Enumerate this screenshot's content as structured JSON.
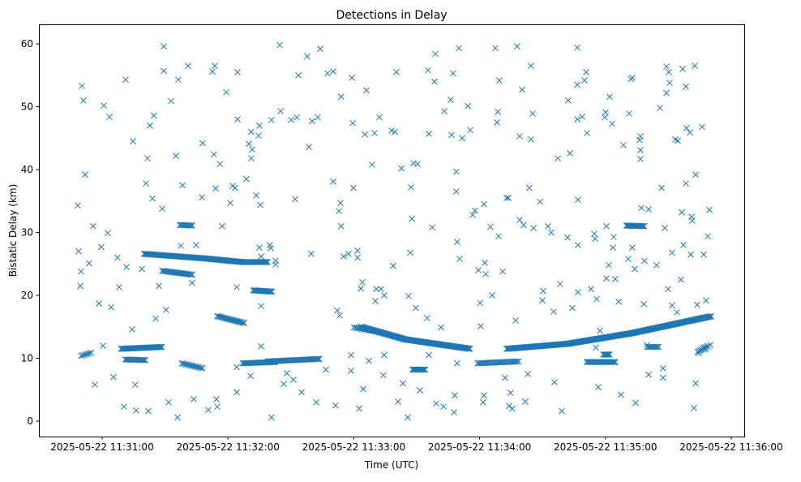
{
  "chart_data": {
    "type": "scatter",
    "title": "Detections in Delay",
    "xlabel": "Time (UTC)",
    "ylabel": "Bistatic Delay (km)",
    "x_unit": "seconds after 2025-05-22 11:30:00",
    "xlim": [
      29.85,
      366.2
    ],
    "ylim": [
      -2.45,
      63.1
    ],
    "grid": false,
    "marker": "x",
    "color": "#1f77b4",
    "yticks": [
      0,
      10,
      20,
      30,
      40,
      50,
      60
    ],
    "xticks": [
      {
        "value": 60,
        "label": "2025-05-22 11:31:00"
      },
      {
        "value": 120,
        "label": "2025-05-22 11:32:00"
      },
      {
        "value": 180,
        "label": "2025-05-22 11:33:00"
      },
      {
        "value": 240,
        "label": "2025-05-22 11:34:00"
      },
      {
        "value": 300,
        "label": "2025-05-22 11:35:00"
      },
      {
        "value": 360,
        "label": "2025-05-22 11:36:00"
      }
    ],
    "tracks": [
      {
        "points": [
          [
            183.3,
            15.0
          ],
          [
            204.6,
            13.0
          ],
          [
            235.5,
            11.5
          ]
        ],
        "step": 0.4
      },
      {
        "points": [
          [
            252.9,
            11.5
          ],
          [
            281.9,
            12.3
          ],
          [
            312.8,
            14.0
          ],
          [
            350.7,
            16.7
          ]
        ],
        "step": 0.4
      },
      {
        "points": [
          [
            80,
            26.6
          ],
          [
            108,
            25.9
          ],
          [
            127,
            25.3
          ],
          [
            139,
            25.3
          ]
        ],
        "step": 0.5
      },
      {
        "points": [
          [
            88.6,
            23.9
          ],
          [
            103,
            23.3
          ]
        ],
        "step": 0.6
      },
      {
        "points": [
          [
            97,
            31.2
          ],
          [
            103,
            31.1
          ]
        ],
        "step": 0.6
      },
      {
        "points": [
          [
            310,
            31.1
          ],
          [
            318.6,
            31.0
          ]
        ],
        "step": 0.5
      },
      {
        "points": [
          [
            132,
            20.8
          ],
          [
            141,
            20.6
          ]
        ],
        "step": 0.5
      },
      {
        "points": [
          [
            114.9,
            16.7
          ],
          [
            127.7,
            15.6
          ]
        ],
        "step": 0.6
      },
      {
        "points": [
          [
            69,
            11.5
          ],
          [
            88.6,
            11.8
          ]
        ],
        "step": 0.5
      },
      {
        "points": [
          [
            71,
            9.8
          ],
          [
            81,
            9.7
          ]
        ],
        "step": 0.6
      },
      {
        "points": [
          [
            50,
            10.4
          ],
          [
            55,
            10.9
          ]
        ],
        "step": 0.8
      },
      {
        "points": [
          [
            139,
            9.5
          ],
          [
            164,
            9.9
          ]
        ],
        "step": 0.6
      },
      {
        "points": [
          [
            98,
            9.2
          ],
          [
            108,
            8.4
          ]
        ],
        "step": 0.7
      },
      {
        "points": [
          [
            127,
            9.2
          ],
          [
            143,
            9.4
          ]
        ],
        "step": 0.6
      },
      {
        "points": [
          [
            208,
            8.2
          ],
          [
            214,
            8.2
          ]
        ],
        "step": 0.5
      },
      {
        "points": [
          [
            239,
            9.2
          ],
          [
            259,
            9.5
          ]
        ],
        "step": 0.7
      },
      {
        "points": [
          [
            291,
            9.4
          ],
          [
            305,
            9.4
          ]
        ],
        "step": 0.6
      },
      {
        "points": [
          [
            299,
            10.6
          ],
          [
            302,
            10.6
          ]
        ],
        "step": 0.5
      },
      {
        "points": [
          [
            320,
            11.8
          ],
          [
            326,
            11.8
          ]
        ],
        "step": 0.6
      },
      {
        "points": [
          [
            344,
            11.0
          ],
          [
            349,
            12.0
          ]
        ],
        "step": 0.6
      },
      {
        "points": [
          [
            180,
            14.9
          ],
          [
            190,
            14.3
          ]
        ],
        "step": 0.8
      }
    ],
    "points": [
      [
        48.4,
        34.3
      ],
      [
        48.8,
        27
      ],
      [
        49.6,
        21.5
      ],
      [
        50.3,
        53.3
      ],
      [
        51.1,
        51
      ],
      [
        51.9,
        39.2
      ],
      [
        49.9,
        23.8
      ],
      [
        53.8,
        25.1
      ],
      [
        55.7,
        31
      ],
      [
        56.5,
        5.8
      ],
      [
        58.5,
        18.7
      ],
      [
        59.6,
        27.7
      ],
      [
        60.4,
        12
      ],
      [
        60.8,
        50.2
      ],
      [
        62.7,
        29.9
      ],
      [
        63.5,
        48.4
      ],
      [
        64.3,
        18.1
      ],
      [
        65.4,
        7
      ],
      [
        67.3,
        26
      ],
      [
        68.1,
        21.3
      ],
      [
        70.4,
        2.3
      ],
      [
        71.2,
        54.3
      ],
      [
        71.6,
        24.5
      ],
      [
        74.3,
        14.6
      ],
      [
        74.7,
        44.5
      ],
      [
        75.8,
        5.8
      ],
      [
        76.2,
        1.7
      ],
      [
        78.9,
        24.2
      ],
      [
        80.9,
        37.8
      ],
      [
        81.6,
        41.8
      ],
      [
        82.0,
        1.6
      ],
      [
        82.8,
        47
      ],
      [
        84.0,
        35.4
      ],
      [
        84.7,
        48.6
      ],
      [
        85.5,
        16.3
      ],
      [
        87.1,
        21.5
      ],
      [
        88.6,
        33.8
      ],
      [
        89.4,
        59.6
      ],
      [
        89.4,
        55.7
      ],
      [
        90.5,
        17.7
      ],
      [
        91.7,
        3
      ],
      [
        92.9,
        50.9
      ],
      [
        95.2,
        42.2
      ],
      [
        96.0,
        0.6
      ],
      [
        96.3,
        54.3
      ],
      [
        97.5,
        27.9
      ],
      [
        98.3,
        37.5
      ],
      [
        101.0,
        56.5
      ],
      [
        102.9,
        22
      ],
      [
        103.7,
        3.5
      ],
      [
        104.8,
        28
      ],
      [
        107.9,
        44.2
      ],
      [
        107.6,
        35.6
      ],
      [
        110.6,
        1.8
      ],
      [
        112.6,
        55.6
      ],
      [
        113.3,
        42.4
      ],
      [
        113.7,
        56.5
      ],
      [
        114.1,
        37
      ],
      [
        114.5,
        3.5
      ],
      [
        114.9,
        2.3
      ],
      [
        116.1,
        40.9
      ],
      [
        117.2,
        31
      ],
      [
        119.2,
        52.3
      ],
      [
        121.1,
        34.7
      ],
      [
        122.2,
        37.4
      ],
      [
        123.4,
        37.1
      ],
      [
        124.2,
        8.6
      ],
      [
        124.2,
        4.6
      ],
      [
        124.6,
        55.5
      ],
      [
        124.2,
        21.3
      ],
      [
        124.6,
        48
      ],
      [
        127.7,
        15.6
      ],
      [
        128.8,
        38.5
      ],
      [
        130.0,
        44.1
      ],
      [
        130.8,
        7.2
      ],
      [
        131.1,
        46
      ],
      [
        131.1,
        41.8
      ],
      [
        131.5,
        43.2
      ],
      [
        133.5,
        35.9
      ],
      [
        134.6,
        45.4
      ],
      [
        135.0,
        27.6
      ],
      [
        135.4,
        34.4
      ],
      [
        135.0,
        47
      ],
      [
        135.8,
        11.9
      ],
      [
        135.8,
        18.3
      ],
      [
        135.8,
        26.2
      ],
      [
        140.0,
        28
      ],
      [
        140.8,
        0.6
      ],
      [
        140.8,
        47.9
      ],
      [
        140.4,
        27.5
      ],
      [
        142.7,
        25.5
      ],
      [
        142.7,
        24.9
      ],
      [
        144.7,
        59.8
      ],
      [
        145.1,
        49.3
      ],
      [
        146.6,
        5.9
      ],
      [
        148.1,
        7.6
      ],
      [
        150.1,
        47.9
      ],
      [
        151.2,
        6.6
      ],
      [
        152.0,
        35.3
      ],
      [
        152.8,
        48.3
      ],
      [
        153.6,
        55
      ],
      [
        155.1,
        4.6
      ],
      [
        157.8,
        58
      ],
      [
        158.6,
        43.6
      ],
      [
        159.7,
        26.6
      ],
      [
        160.1,
        47.7
      ],
      [
        162.1,
        3
      ],
      [
        162.8,
        48.3
      ],
      [
        164.0,
        59.2
      ],
      [
        166.7,
        8.2
      ],
      [
        167.5,
        55.3
      ],
      [
        170.2,
        55.6
      ],
      [
        170.2,
        38.1
      ],
      [
        171.3,
        2.5
      ],
      [
        172.1,
        17.6
      ],
      [
        173.3,
        16.8
      ],
      [
        172.9,
        33.4
      ],
      [
        173.7,
        34.7
      ],
      [
        174.0,
        31
      ],
      [
        174.0,
        51.6
      ],
      [
        175.2,
        26.2
      ],
      [
        177.5,
        26.6
      ],
      [
        178.7,
        8
      ],
      [
        178.7,
        10.5
      ],
      [
        179.1,
        54.6
      ],
      [
        179.5,
        47.4
      ],
      [
        179.8,
        37.1
      ],
      [
        181.8,
        27.1
      ],
      [
        181.8,
        26
      ],
      [
        182.6,
        2
      ],
      [
        183.3,
        21.1
      ],
      [
        184.1,
        22.1
      ],
      [
        184.5,
        5.1
      ],
      [
        185.3,
        45.6
      ],
      [
        186.0,
        52.6
      ],
      [
        187.2,
        9.6
      ],
      [
        188.7,
        40.8
      ],
      [
        189.9,
        45.8
      ],
      [
        190.3,
        19.1
      ],
      [
        190.7,
        21
      ],
      [
        192.2,
        48.3
      ],
      [
        193.0,
        21
      ],
      [
        194.1,
        7.3
      ],
      [
        194.5,
        10.5
      ],
      [
        194.5,
        20
      ],
      [
        198.0,
        46.2
      ],
      [
        198.8,
        24.7
      ],
      [
        199.6,
        46
      ],
      [
        200.3,
        55.5
      ],
      [
        201.1,
        3.1
      ],
      [
        202.7,
        40.2
      ],
      [
        203.4,
        6
      ],
      [
        205.7,
        0.6
      ],
      [
        206.1,
        19.9
      ],
      [
        206.9,
        26.8
      ],
      [
        207.3,
        37.2
      ],
      [
        208.5,
        41
      ],
      [
        207.7,
        32.2
      ],
      [
        209.6,
        18
      ],
      [
        210.4,
        40.9
      ],
      [
        211.5,
        4.9
      ],
      [
        211.9,
        12.6
      ],
      [
        215.0,
        16.4
      ],
      [
        215.4,
        55.8
      ],
      [
        215.8,
        10.5
      ],
      [
        215.8,
        45.7
      ],
      [
        217.4,
        30.8
      ],
      [
        218.5,
        54
      ],
      [
        218.9,
        58.4
      ],
      [
        219.3,
        2.8
      ],
      [
        221.6,
        14.9
      ],
      [
        222.8,
        2.3
      ],
      [
        223.2,
        49.3
      ],
      [
        226.2,
        51.1
      ],
      [
        226.6,
        45.5
      ],
      [
        227.4,
        55.3
      ],
      [
        227.8,
        1.4
      ],
      [
        228.2,
        4.1
      ],
      [
        228.9,
        36.5
      ],
      [
        228.9,
        39.7
      ],
      [
        229.3,
        28.5
      ],
      [
        229.3,
        9.2
      ],
      [
        230.1,
        59.3
      ],
      [
        230.5,
        25.8
      ],
      [
        231.7,
        45
      ],
      [
        234.4,
        50.1
      ],
      [
        235.5,
        46.3
      ],
      [
        236.7,
        32.8
      ],
      [
        237.8,
        33.5
      ],
      [
        239.4,
        24
      ],
      [
        240.2,
        18.8
      ],
      [
        240.5,
        15.1
      ],
      [
        241.7,
        3
      ],
      [
        242.1,
        34.5
      ],
      [
        242.5,
        25.2
      ],
      [
        242.9,
        23.4
      ],
      [
        242.1,
        4.1
      ],
      [
        245.2,
        30.9
      ],
      [
        246.0,
        20
      ],
      [
        247.5,
        59.3
      ],
      [
        248.3,
        47.5
      ],
      [
        248.7,
        49.2
      ],
      [
        249.1,
        29.4
      ],
      [
        249.4,
        54.2
      ],
      [
        251.0,
        23.8
      ],
      [
        252.1,
        6.9
      ],
      [
        252.9,
        35.5
      ],
      [
        253.7,
        35.5
      ],
      [
        254.1,
        2.4
      ],
      [
        254.8,
        4.5
      ],
      [
        255.6,
        2
      ],
      [
        257.2,
        16
      ],
      [
        257.9,
        59.6
      ],
      [
        259.1,
        45.3
      ],
      [
        259.1,
        32
      ],
      [
        260.3,
        52.7
      ],
      [
        261.0,
        31.2
      ],
      [
        261.8,
        3.1
      ],
      [
        263.0,
        7.5
      ],
      [
        263.7,
        37.1
      ],
      [
        264.5,
        56.5
      ],
      [
        264.5,
        44.8
      ],
      [
        265.3,
        48.9
      ],
      [
        265.7,
        30.7
      ],
      [
        268.8,
        34.9
      ],
      [
        269.9,
        19.2
      ],
      [
        270.3,
        20.7
      ],
      [
        272.6,
        31
      ],
      [
        274.2,
        30
      ],
      [
        275.3,
        17.4
      ],
      [
        275.7,
        6.2
      ],
      [
        277.3,
        41.8
      ],
      [
        278.4,
        21.8
      ],
      [
        279.2,
        1.6
      ],
      [
        281.9,
        29.2
      ],
      [
        282.3,
        51
      ],
      [
        283.1,
        42.6
      ],
      [
        284.2,
        18
      ],
      [
        286.6,
        59.4
      ],
      [
        286.6,
        48
      ],
      [
        286.6,
        53.5
      ],
      [
        286.9,
        35.2
      ],
      [
        286.9,
        28
      ],
      [
        286.9,
        20.5
      ],
      [
        288.9,
        48.4
      ],
      [
        290.0,
        54.2
      ],
      [
        290.8,
        55.5
      ],
      [
        291.2,
        45.8
      ],
      [
        293.1,
        21
      ],
      [
        294.7,
        29.8
      ],
      [
        295.1,
        29
      ],
      [
        295.4,
        11.7
      ],
      [
        295.8,
        19.4
      ],
      [
        296.6,
        5.4
      ],
      [
        297.4,
        14.4
      ],
      [
        299.7,
        48.3
      ],
      [
        300.1,
        49.1
      ],
      [
        300.5,
        22.7
      ],
      [
        300.5,
        31
      ],
      [
        301.6,
        24.8
      ],
      [
        302.0,
        51.6
      ],
      [
        303.2,
        47.3
      ],
      [
        303.6,
        27.6
      ],
      [
        303.9,
        29.3
      ],
      [
        304.7,
        22.6
      ],
      [
        306.3,
        19
      ],
      [
        307.4,
        4.2
      ],
      [
        308.6,
        43.9
      ],
      [
        310.9,
        25.8
      ],
      [
        311.3,
        48.9
      ],
      [
        312.1,
        54.4
      ],
      [
        312.8,
        27.6
      ],
      [
        312.8,
        54.6
      ],
      [
        314.0,
        24.2
      ],
      [
        314.4,
        2.9
      ],
      [
        316.3,
        44.7
      ],
      [
        316.7,
        43.1
      ],
      [
        316.7,
        41.7
      ],
      [
        316.7,
        45.3
      ],
      [
        317.1,
        33.9
      ],
      [
        318.3,
        18.6
      ],
      [
        318.6,
        25.5
      ],
      [
        319.8,
        12.1
      ],
      [
        320.6,
        7.4
      ],
      [
        320.6,
        33.7
      ],
      [
        324.4,
        24.8
      ],
      [
        326.0,
        49.8
      ],
      [
        326.8,
        37.1
      ],
      [
        327.5,
        8.4
      ],
      [
        327.5,
        6.9
      ],
      [
        328.3,
        30.7
      ],
      [
        329.1,
        52.2
      ],
      [
        329.1,
        56.4
      ],
      [
        329.9,
        21
      ],
      [
        330.2,
        55.5
      ],
      [
        330.6,
        53.8
      ],
      [
        331.8,
        18.4
      ],
      [
        331.8,
        26.8
      ],
      [
        333.3,
        44.8
      ],
      [
        334.1,
        17.3
      ],
      [
        334.5,
        44.6
      ],
      [
        336.0,
        22.5
      ],
      [
        336.4,
        33.2
      ],
      [
        336.8,
        56
      ],
      [
        337.2,
        28
      ],
      [
        338.4,
        53.2
      ],
      [
        338.4,
        37.8
      ],
      [
        338.7,
        46.6
      ],
      [
        340.3,
        45.9
      ],
      [
        340.7,
        26.5
      ],
      [
        341.1,
        32.5
      ],
      [
        341.4,
        31.9
      ],
      [
        342.2,
        2.1
      ],
      [
        342.6,
        56.5
      ],
      [
        343.0,
        6
      ],
      [
        343.0,
        39.2
      ],
      [
        343.8,
        18.5
      ],
      [
        344.5,
        10.8
      ],
      [
        346.1,
        46.8
      ],
      [
        346.9,
        11.7
      ],
      [
        346.9,
        26.5
      ],
      [
        347.7,
        11.4
      ],
      [
        348.0,
        19.2
      ],
      [
        348.8,
        29.4
      ],
      [
        349.6,
        33.6
      ],
      [
        350.0,
        12.1
      ]
    ]
  }
}
